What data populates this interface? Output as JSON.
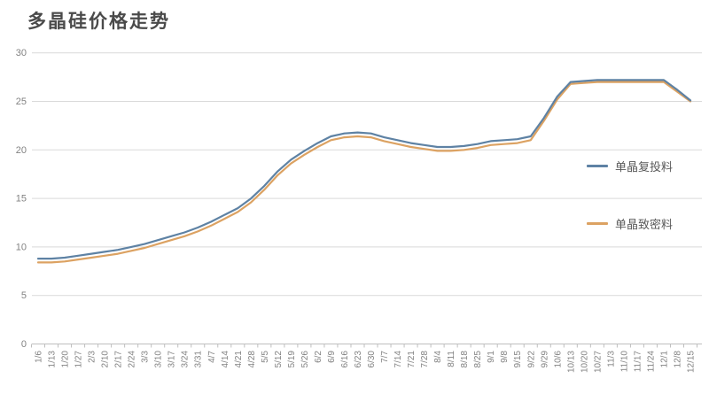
{
  "title": "多晶硅价格走势",
  "legend": {
    "position": "right",
    "items": [
      {
        "label": "单晶复投料",
        "color": "#5e82a4"
      },
      {
        "label": "单晶致密料",
        "color": "#dca262"
      }
    ]
  },
  "colors": {
    "background": "#ffffff",
    "title_text": "#4a4a4a",
    "axis_text": "#828282",
    "gridline": "#d9d9d9",
    "axis_line": "#bfbfbf",
    "series_blue": "#5e82a4",
    "series_orange": "#dca262"
  },
  "chart_data": {
    "type": "line",
    "title": "多晶硅价格走势",
    "xlabel": "",
    "ylabel": "",
    "ylim": [
      0,
      30
    ],
    "yticks": [
      0,
      5,
      10,
      15,
      20,
      25,
      30
    ],
    "grid": "horizontal",
    "x_label_rotation": -90,
    "legend_position": "right",
    "x": [
      "1/6",
      "1/13",
      "1/20",
      "1/27",
      "2/3",
      "2/10",
      "2/17",
      "2/24",
      "3/3",
      "3/10",
      "3/17",
      "3/24",
      "3/31",
      "4/7",
      "4/14",
      "4/21",
      "4/28",
      "5/5",
      "5/12",
      "5/19",
      "5/26",
      "6/2",
      "6/9",
      "6/16",
      "6/23",
      "6/30",
      "7/7",
      "7/14",
      "7/21",
      "7/28",
      "8/4",
      "8/11",
      "8/18",
      "8/25",
      "9/1",
      "9/8",
      "9/15",
      "9/22",
      "9/29",
      "10/6",
      "10/13",
      "10/20",
      "10/27",
      "11/3",
      "11/10",
      "11/17",
      "11/24",
      "12/1",
      "12/8",
      "12/15"
    ],
    "series": [
      {
        "name": "单晶复投料",
        "color": "#5e82a4",
        "values": [
          8.8,
          8.8,
          8.9,
          9.1,
          9.3,
          9.5,
          9.7,
          10.0,
          10.3,
          10.7,
          11.1,
          11.5,
          12.0,
          12.6,
          13.3,
          14.0,
          15.0,
          16.3,
          17.8,
          19.0,
          19.9,
          20.7,
          21.4,
          21.7,
          21.8,
          21.7,
          21.3,
          21.0,
          20.7,
          20.5,
          20.3,
          20.3,
          20.4,
          20.6,
          20.9,
          21.0,
          21.1,
          21.4,
          23.3,
          25.5,
          27.0,
          27.1,
          27.2,
          27.2,
          27.2,
          27.2,
          27.2,
          27.2,
          26.2,
          25.1
        ]
      },
      {
        "name": "单晶致密料",
        "color": "#dca262",
        "values": [
          8.4,
          8.4,
          8.5,
          8.7,
          8.9,
          9.1,
          9.3,
          9.6,
          9.9,
          10.3,
          10.7,
          11.1,
          11.6,
          12.2,
          12.9,
          13.6,
          14.6,
          15.9,
          17.4,
          18.6,
          19.5,
          20.3,
          21.0,
          21.3,
          21.4,
          21.3,
          20.9,
          20.6,
          20.3,
          20.1,
          19.9,
          19.9,
          20.0,
          20.2,
          20.5,
          20.6,
          20.7,
          21.0,
          23.0,
          25.2,
          26.8,
          26.9,
          27.0,
          27.0,
          27.0,
          27.0,
          27.0,
          27.0,
          26.0,
          25.0
        ]
      }
    ]
  }
}
